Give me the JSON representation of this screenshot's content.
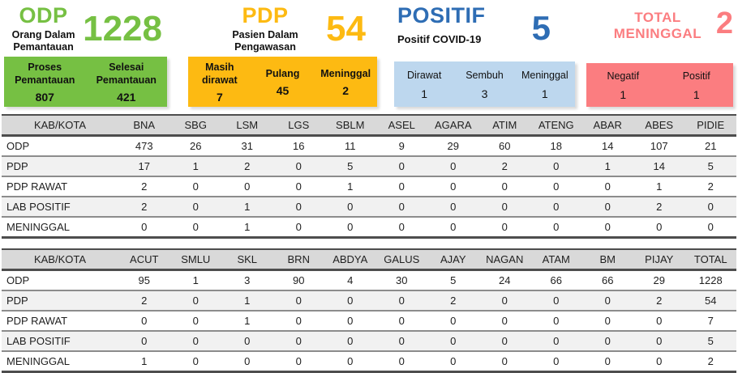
{
  "colors": {
    "odp_green": "#76c043",
    "pdp_yellow": "#fdba12",
    "positif_blue": "#2e6db4",
    "positif_box_blue": "#bdd7ee",
    "meninggal_salmon": "#fb7d80",
    "table_header_gray": "#d9d9d9",
    "table_stripe_gray": "#f1f1f1"
  },
  "cards": {
    "odp": {
      "title": "ODP",
      "subtitle": "Orang Dalam Pemantauan",
      "value": "1228",
      "box": {
        "items": [
          {
            "label": "Proses Pemantauan",
            "value": "807"
          },
          {
            "label": "Selesai Pemantauan",
            "value": "421"
          }
        ]
      }
    },
    "pdp": {
      "title": "PDP",
      "subtitle": "Pasien Dalam Pengawasan",
      "value": "54",
      "box": {
        "items": [
          {
            "label": "Masih dirawat",
            "value": "7"
          },
          {
            "label": "Pulang",
            "value": "45"
          },
          {
            "label": "Meninggal",
            "value": "2"
          }
        ]
      }
    },
    "positif": {
      "title": "POSITIF",
      "subtitle": "Positif COVID-19",
      "value": "5",
      "box": {
        "items": [
          {
            "label": "Dirawat",
            "value": "1"
          },
          {
            "label": "Sembuh",
            "value": "3"
          },
          {
            "label": "Meninggal",
            "value": "1"
          }
        ]
      }
    },
    "meninggal": {
      "title": "TOTAL MENINGGAL",
      "value": "2",
      "box": {
        "items": [
          {
            "label": "Negatif",
            "value": "1"
          },
          {
            "label": "Positif",
            "value": "1"
          }
        ]
      }
    }
  },
  "chart_data": [
    {
      "type": "table",
      "headers": [
        "KAB/KOTA",
        "BNA",
        "SBG",
        "LSM",
        "LGS",
        "SBLM",
        "ASEL",
        "AGARA",
        "ATIM",
        "ATENG",
        "ABAR",
        "ABES",
        "PIDIE"
      ],
      "rows": [
        {
          "label": "ODP",
          "values": [
            473,
            26,
            31,
            16,
            11,
            9,
            29,
            60,
            18,
            14,
            107,
            21
          ]
        },
        {
          "label": "PDP",
          "values": [
            17,
            1,
            2,
            0,
            5,
            0,
            0,
            2,
            0,
            1,
            14,
            5
          ]
        },
        {
          "label": "PDP RAWAT",
          "values": [
            2,
            0,
            0,
            0,
            1,
            0,
            0,
            0,
            0,
            0,
            1,
            2
          ]
        },
        {
          "label": "LAB POSITIF",
          "values": [
            2,
            0,
            1,
            0,
            0,
            0,
            0,
            0,
            0,
            0,
            2,
            0
          ]
        },
        {
          "label": "MENINGGAL",
          "values": [
            0,
            0,
            1,
            0,
            0,
            0,
            0,
            0,
            0,
            0,
            0,
            0
          ]
        }
      ]
    },
    {
      "type": "table",
      "headers": [
        "KAB/KOTA",
        "ACUT",
        "SMLU",
        "SKL",
        "BRN",
        "ABDYA",
        "GALUS",
        "AJAY",
        "NAGAN",
        "ATAM",
        "BM",
        "PIJAY",
        "TOTAL"
      ],
      "rows": [
        {
          "label": "ODP",
          "values": [
            95,
            1,
            3,
            90,
            4,
            30,
            5,
            24,
            66,
            66,
            29,
            1228
          ]
        },
        {
          "label": "PDP",
          "values": [
            2,
            0,
            1,
            0,
            0,
            0,
            2,
            0,
            0,
            0,
            2,
            54
          ]
        },
        {
          "label": "PDP RAWAT",
          "values": [
            0,
            0,
            1,
            0,
            0,
            0,
            0,
            0,
            0,
            0,
            0,
            7
          ]
        },
        {
          "label": "LAB POSITIF",
          "values": [
            0,
            0,
            0,
            0,
            0,
            0,
            0,
            0,
            0,
            0,
            0,
            5
          ]
        },
        {
          "label": "MENINGGAL",
          "values": [
            1,
            0,
            0,
            0,
            0,
            0,
            0,
            0,
            0,
            0,
            0,
            2
          ]
        }
      ]
    }
  ]
}
